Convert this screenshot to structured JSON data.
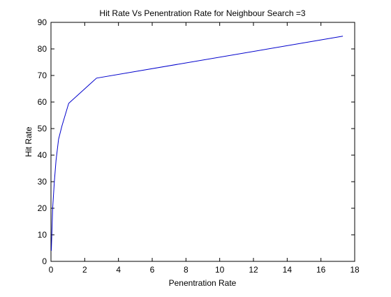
{
  "chart_data": {
    "type": "line",
    "title": "Hit Rate Vs Penentration Rate for Neighbour Search =3",
    "xlabel": "Penentration Rate",
    "ylabel": "Hit Rate",
    "xlim": [
      0,
      18
    ],
    "ylim": [
      0,
      90
    ],
    "xticks": [
      0,
      2,
      4,
      6,
      8,
      10,
      12,
      14,
      16,
      18
    ],
    "yticks": [
      0,
      10,
      20,
      30,
      40,
      50,
      60,
      70,
      80,
      90
    ],
    "grid": false,
    "line_color": "#0000cc",
    "series": [
      {
        "x": [
          0.02,
          0.1,
          0.2,
          0.3,
          0.45,
          0.65,
          1.05,
          2.7,
          17.3
        ],
        "y": [
          4,
          20,
          30,
          38,
          46,
          51,
          59.5,
          69,
          84.8
        ]
      }
    ]
  }
}
